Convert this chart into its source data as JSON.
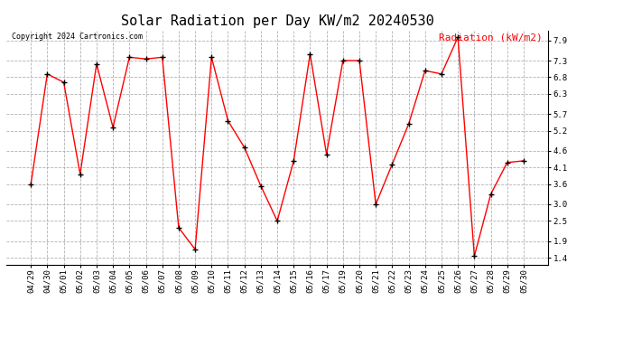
{
  "title": "Solar Radiation per Day KW/m2 20240530",
  "legend_label": "Radiation (kW/m2)",
  "copyright_text": "Copyright 2024 Cartronics.com",
  "dates": [
    "04/29",
    "04/30",
    "05/01",
    "05/02",
    "05/03",
    "05/04",
    "05/05",
    "05/06",
    "05/07",
    "05/08",
    "05/09",
    "05/10",
    "05/11",
    "05/12",
    "05/13",
    "05/14",
    "05/15",
    "05/16",
    "05/17",
    "05/19",
    "05/20",
    "05/21",
    "05/22",
    "05/23",
    "05/24",
    "05/25",
    "05/26",
    "05/27",
    "05/28",
    "05/29",
    "05/30"
  ],
  "values": [
    3.6,
    6.9,
    6.65,
    3.9,
    7.2,
    5.3,
    7.4,
    7.35,
    7.4,
    2.3,
    1.65,
    7.4,
    5.5,
    4.7,
    3.55,
    2.5,
    4.3,
    7.5,
    4.5,
    7.3,
    7.3,
    3.0,
    4.2,
    5.4,
    7.0,
    6.9,
    8.0,
    1.45,
    3.3,
    4.25,
    4.3
  ],
  "yticks": [
    1.4,
    1.9,
    2.5,
    3.0,
    3.6,
    4.1,
    4.6,
    5.2,
    5.7,
    6.3,
    6.8,
    7.3,
    7.9
  ],
  "ylim": [
    1.2,
    8.2
  ],
  "line_color": "red",
  "marker_color": "black",
  "background_color": "white",
  "grid_color": "#aaaaaa",
  "title_fontsize": 11,
  "tick_fontsize": 6.5,
  "copyright_fontsize": 6,
  "legend_fontsize": 8
}
